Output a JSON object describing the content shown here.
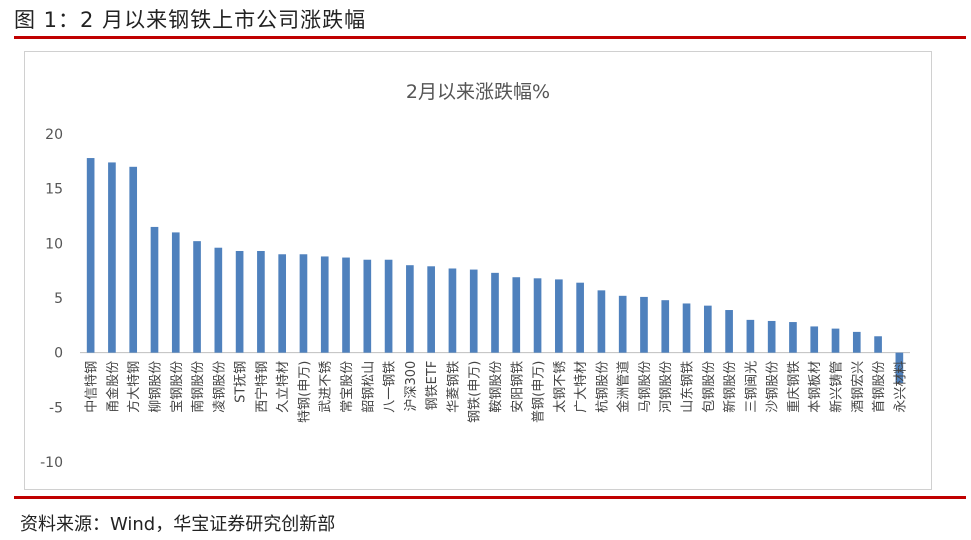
{
  "figure_title": "图 1：2 月以来钢铁上市公司涨跌幅",
  "source": "资料来源：Wind，华宝证券研究创新部",
  "colors": {
    "bar": "#4f81bd",
    "rule": "#c00000"
  },
  "chart_data": {
    "type": "bar",
    "title": "2月以来涨跌幅%",
    "ylim": [
      -10,
      20
    ],
    "yticks": [
      20,
      15,
      10,
      5,
      0,
      -5,
      -10
    ],
    "grid": false,
    "legend": "none",
    "categories": [
      "中信特钢",
      "甬金股份",
      "方大特钢",
      "柳钢股份",
      "宝钢股份",
      "南钢股份",
      "凌钢股份",
      "ST抚钢",
      "西宁特钢",
      "久立特材",
      "特钢(申万)",
      "武进不锈",
      "常宝股份",
      "韶钢松山",
      "八一钢铁",
      "沪深300",
      "钢铁ETF",
      "华菱钢铁",
      "钢铁(申万)",
      "鞍钢股份",
      "安阳钢铁",
      "普钢(申万)",
      "太钢不锈",
      "广大特材",
      "杭钢股份",
      "金洲管道",
      "马钢股份",
      "河钢股份",
      "山东钢铁",
      "包钢股份",
      "新钢股份",
      "三钢闽光",
      "沙钢股份",
      "重庆钢铁",
      "本钢板材",
      "新兴铸管",
      "酒钢宏兴",
      "首钢股份",
      "永兴材料"
    ],
    "values": [
      17.8,
      17.4,
      17.0,
      11.5,
      11.0,
      10.2,
      9.6,
      9.3,
      9.3,
      9.0,
      9.0,
      8.8,
      8.7,
      8.5,
      8.5,
      8.0,
      7.9,
      7.7,
      7.6,
      7.3,
      6.9,
      6.8,
      6.7,
      6.4,
      5.7,
      5.2,
      5.1,
      4.8,
      4.5,
      4.3,
      3.9,
      3.0,
      2.9,
      2.8,
      2.4,
      2.2,
      1.9,
      1.5,
      -2.8
    ]
  }
}
